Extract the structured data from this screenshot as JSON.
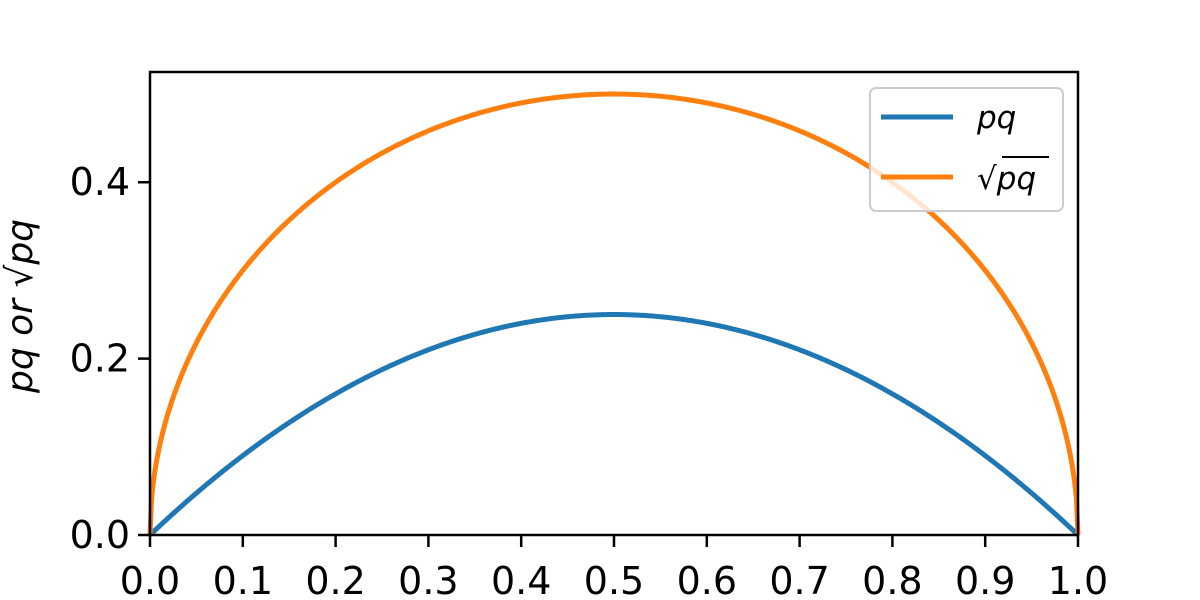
{
  "chart_data": {
    "type": "line",
    "title": "",
    "xlabel": "",
    "ylabel": {
      "prefix": "pq or ",
      "radical": "√",
      "radicand": "pq"
    },
    "xlim": [
      0.0,
      1.0
    ],
    "ylim": [
      0.0,
      0.525
    ],
    "x_ticks": [
      0.0,
      0.1,
      0.2,
      0.3,
      0.4,
      0.5,
      0.6,
      0.7,
      0.8,
      0.9,
      1.0
    ],
    "x_tick_labels": [
      "0.0",
      "0.1",
      "0.2",
      "0.3",
      "0.4",
      "0.5",
      "0.6",
      "0.7",
      "0.8",
      "0.9",
      "1.0"
    ],
    "y_ticks": [
      0.0,
      0.2,
      0.4
    ],
    "y_tick_labels": [
      "0.0",
      "0.2",
      "0.4"
    ],
    "grid": false,
    "legend_position": "top-right",
    "series": [
      {
        "name": "pq",
        "legend": {
          "radical": "",
          "text": "pq"
        },
        "color": "#1f77b4",
        "formula": "p*(1-p)",
        "x": [
          0.0,
          0.05,
          0.1,
          0.15,
          0.2,
          0.25,
          0.3,
          0.35,
          0.4,
          0.45,
          0.5,
          0.55,
          0.6,
          0.65,
          0.7,
          0.75,
          0.8,
          0.85,
          0.9,
          0.95,
          1.0
        ],
        "y": [
          0.0,
          0.0475,
          0.09,
          0.1275,
          0.16,
          0.1875,
          0.21,
          0.2275,
          0.24,
          0.2475,
          0.25,
          0.2475,
          0.24,
          0.2275,
          0.21,
          0.1875,
          0.16,
          0.1275,
          0.09,
          0.0475,
          0.0
        ]
      },
      {
        "name": "√pq",
        "legend": {
          "radical": "√",
          "text": "pq"
        },
        "color": "#ff7f0e",
        "formula": "sqrt(p*(1-p))",
        "x": [
          0.0,
          0.05,
          0.1,
          0.15,
          0.2,
          0.25,
          0.3,
          0.35,
          0.4,
          0.45,
          0.5,
          0.55,
          0.6,
          0.65,
          0.7,
          0.75,
          0.8,
          0.85,
          0.9,
          0.95,
          1.0
        ],
        "y": [
          0.0,
          0.2179,
          0.3,
          0.3571,
          0.4,
          0.433,
          0.4583,
          0.477,
          0.4899,
          0.4975,
          0.5,
          0.4975,
          0.4899,
          0.477,
          0.4583,
          0.433,
          0.4,
          0.3571,
          0.3,
          0.2179,
          0.0
        ]
      }
    ]
  }
}
